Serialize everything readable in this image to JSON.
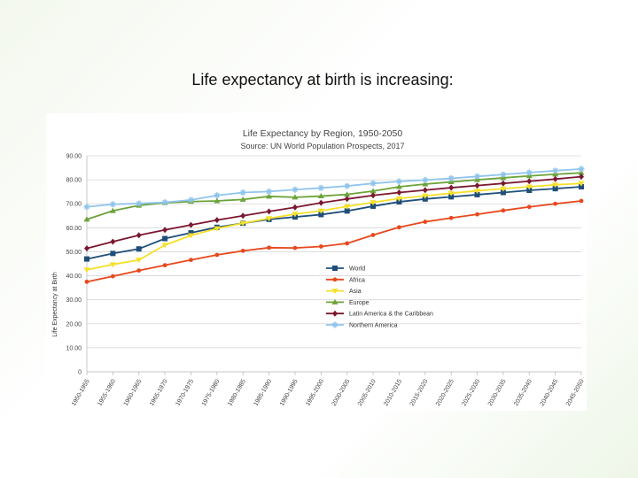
{
  "slide": {
    "title": "Life expectancy at birth is increasing:"
  },
  "chart_data": {
    "type": "line",
    "title": "Life Expectancy by Region, 1950-2050",
    "subtitle": "Source: UN World Population Prospects, 2017",
    "xlabel": "",
    "ylabel": "Life Expectancy at Birth",
    "ylim": [
      0,
      90
    ],
    "yticks": [
      "0",
      "10.00",
      "20.00",
      "30.00",
      "40.00",
      "50.00",
      "60.00",
      "70.00",
      "80.00",
      "90.00"
    ],
    "ytick_values": [
      0,
      10,
      20,
      30,
      40,
      50,
      60,
      70,
      80,
      90
    ],
    "grid": true,
    "legend_position": "center-right",
    "categories": [
      "1950-1955",
      "1955-1960",
      "1960-1965",
      "1965-1970",
      "1970-1975",
      "1975-1980",
      "1980-1985",
      "1985-1990",
      "1990-1995",
      "1995-2000",
      "2000-2005",
      "2005-2010",
      "2010-2015",
      "2015-2020",
      "2020-2025",
      "2025-2030",
      "2030-2035",
      "2035-2040",
      "2040-2045",
      "2045-2050"
    ],
    "series": [
      {
        "name": "World",
        "color": "#1f4e79",
        "marker": "square",
        "values": [
          47,
          49.3,
          51.2,
          55.5,
          57.9,
          60.2,
          61.9,
          63.5,
          64.5,
          65.5,
          67,
          69,
          70.8,
          72,
          72.9,
          73.8,
          74.7,
          75.6,
          76.3,
          77.1
        ]
      },
      {
        "name": "Africa",
        "color": "#e8481c",
        "marker": "circle",
        "values": [
          37.5,
          39.8,
          42.2,
          44.4,
          46.6,
          48.7,
          50.4,
          51.7,
          51.6,
          52.2,
          53.5,
          57,
          60.2,
          62.5,
          64.1,
          65.6,
          67.2,
          68.7,
          70,
          71.2
        ]
      },
      {
        "name": "Asia",
        "color": "#f5e02a",
        "marker": "triangle-down",
        "values": [
          42.5,
          44.7,
          46.6,
          52.8,
          56.8,
          59.7,
          61.9,
          63.9,
          65.7,
          67.1,
          68.9,
          70.6,
          72.2,
          73.3,
          74.4,
          75.4,
          76.3,
          77.1,
          77.9,
          78.5
        ]
      },
      {
        "name": "Europe",
        "color": "#6ca33a",
        "marker": "triangle-up",
        "values": [
          63.5,
          67.1,
          69.3,
          70.4,
          70.9,
          71.2,
          71.8,
          73.1,
          72.7,
          73.2,
          73.9,
          75.3,
          77.1,
          78.2,
          79.1,
          80,
          80.8,
          81.6,
          82.3,
          82.9
        ]
      },
      {
        "name": "Latin America & the Caribbean",
        "color": "#7b1730",
        "marker": "diamond",
        "values": [
          51.4,
          54.2,
          56.9,
          59.1,
          61.2,
          63.2,
          65,
          66.8,
          68.5,
          70.4,
          72,
          73.5,
          74.7,
          75.7,
          76.7,
          77.6,
          78.5,
          79.4,
          80.3,
          81.3
        ]
      },
      {
        "name": "Northern America",
        "color": "#8fc4ec",
        "marker": "star",
        "values": [
          68.7,
          69.8,
          70.1,
          70.6,
          71.6,
          73.5,
          74.7,
          75.1,
          75.9,
          76.6,
          77.4,
          78.5,
          79.3,
          79.9,
          80.6,
          81.4,
          82.2,
          83,
          83.8,
          84.5
        ]
      }
    ]
  }
}
